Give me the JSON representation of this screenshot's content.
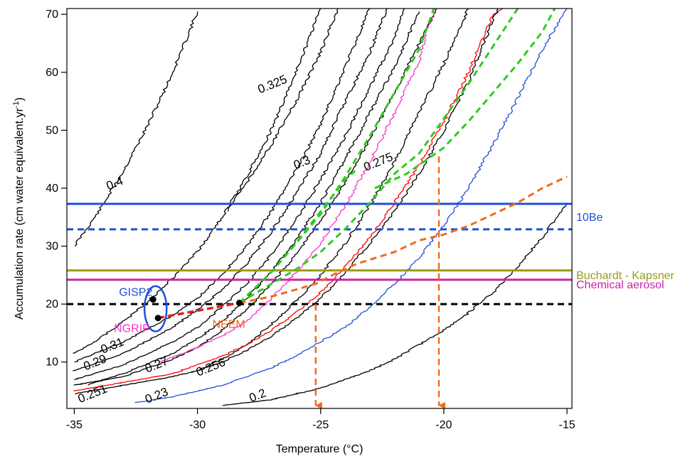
{
  "chart_data": {
    "type": "line",
    "title": "",
    "xlabel": "Temperature (°C)",
    "ylabel": "Accumulation rate (cm water equivalent.yr",
    "ylabel_superscript": "-1",
    "ylabel_close": ")",
    "xlim": [
      -35.3,
      -14.8
    ],
    "ylim": [
      2,
      71
    ],
    "x_ticks": [
      -35,
      -30,
      -25,
      -20,
      -15
    ],
    "x_tick_labels": [
      "-35",
      "-30",
      "-25",
      "-20",
      "-15"
    ],
    "y_ticks": [
      10,
      20,
      30,
      40,
      50,
      60,
      70
    ],
    "y_tick_labels": [
      "10",
      "20",
      "30",
      "40",
      "50",
      "60",
      "70"
    ],
    "grid": false,
    "contours": [
      {
        "label": "0.4",
        "color": "#000000",
        "points": [
          [
            -35,
            30
          ],
          [
            -34,
            36
          ],
          [
            -33,
            43
          ],
          [
            -32,
            51
          ],
          [
            -31,
            60
          ],
          [
            -30,
            70.5
          ]
        ]
      },
      {
        "label": "",
        "color": "#000000",
        "points": [
          [
            -35,
            11.5
          ],
          [
            -34,
            14
          ],
          [
            -33,
            17
          ],
          [
            -32,
            20.5
          ],
          [
            -31,
            24.5
          ],
          [
            -30,
            29
          ],
          [
            -29,
            35
          ],
          [
            -28,
            42
          ],
          [
            -27,
            50
          ],
          [
            -26,
            60
          ],
          [
            -25,
            71
          ]
        ]
      },
      {
        "label": "",
        "color": "#000000",
        "points": [
          [
            -35,
            10
          ],
          [
            -33,
            13.5
          ],
          [
            -31,
            18
          ],
          [
            -30,
            21
          ],
          [
            -29,
            25
          ],
          [
            -28,
            30
          ],
          [
            -27,
            36
          ],
          [
            -26,
            43
          ],
          [
            -25,
            51
          ],
          [
            -24,
            61
          ],
          [
            -23,
            71
          ]
        ]
      },
      {
        "label": "",
        "color": "#000000",
        "points": [
          [
            -35,
            8.5
          ],
          [
            -33,
            11.5
          ],
          [
            -31,
            16
          ],
          [
            -30,
            19
          ],
          [
            -29,
            22.5
          ],
          [
            -28,
            27
          ],
          [
            -27,
            32.5
          ],
          [
            -26,
            39
          ],
          [
            -25,
            46
          ],
          [
            -24,
            55
          ],
          [
            -23,
            63.5
          ],
          [
            -22.3,
            71
          ]
        ]
      },
      {
        "label": "0.31",
        "color": "#000000",
        "points": [
          [
            -35,
            7
          ],
          [
            -33,
            9.5
          ],
          [
            -31,
            13.5
          ],
          [
            -30,
            16
          ],
          [
            -29,
            19.5
          ],
          [
            -28,
            23.5
          ],
          [
            -27,
            28.5
          ],
          [
            -26,
            34.5
          ],
          [
            -25,
            41.5
          ],
          [
            -24,
            49
          ],
          [
            -23,
            57.5
          ],
          [
            -22,
            66
          ],
          [
            -21.6,
            71
          ]
        ]
      },
      {
        "label": "0.3",
        "color": "#000000",
        "points": [
          [
            -34.5,
            6
          ],
          [
            -33,
            8
          ],
          [
            -31,
            11.5
          ],
          [
            -30,
            14
          ],
          [
            -29,
            17
          ],
          [
            -28,
            21
          ],
          [
            -27,
            25.5
          ],
          [
            -26,
            31
          ],
          [
            -25,
            37.5
          ],
          [
            -24,
            45
          ],
          [
            -23,
            53
          ],
          [
            -22,
            61
          ],
          [
            -21,
            70.5
          ]
        ]
      },
      {
        "label": "0.29",
        "color": "#000000",
        "points": [
          [
            -35,
            6
          ],
          [
            -33,
            7.5
          ],
          [
            -31,
            10.5
          ],
          [
            -30,
            12.5
          ],
          [
            -29,
            15.5
          ],
          [
            -28,
            19
          ],
          [
            -27,
            23.5
          ],
          [
            -26,
            28.5
          ],
          [
            -25,
            34.5
          ],
          [
            -24,
            41
          ],
          [
            -23,
            48.5
          ],
          [
            -22,
            56.5
          ],
          [
            -21,
            65
          ],
          [
            -20.3,
            71
          ]
        ]
      },
      {
        "label": "0.325",
        "color": "#000000",
        "points": [
          [
            -28.8,
            36
          ],
          [
            -28,
            41
          ],
          [
            -27,
            47.5
          ],
          [
            -26,
            55
          ],
          [
            -25,
            63.5
          ],
          [
            -24.3,
            71
          ]
        ]
      },
      {
        "label": "0.27",
        "color": "#ff33cc",
        "points": [
          [
            -31.5,
            10
          ],
          [
            -30,
            12.5
          ],
          [
            -29,
            14.5
          ],
          [
            -28,
            17
          ],
          [
            -27,
            21
          ],
          [
            -26,
            25.5
          ],
          [
            -25,
            30.5
          ],
          [
            -24,
            37
          ],
          [
            -23,
            44.5
          ],
          [
            -22,
            53
          ],
          [
            -21,
            62
          ],
          [
            -20.4,
            71
          ]
        ]
      },
      {
        "label": "0.275",
        "color": "#000000",
        "points": [
          [
            -30,
            8.5
          ],
          [
            -29,
            10.5
          ],
          [
            -28,
            13
          ],
          [
            -27,
            16.5
          ],
          [
            -26,
            20.5
          ],
          [
            -25,
            25
          ],
          [
            -24,
            30.5
          ],
          [
            -23,
            37
          ],
          [
            -22,
            44.5
          ],
          [
            -21,
            53
          ],
          [
            -20,
            61.5
          ],
          [
            -19,
            71
          ]
        ]
      },
      {
        "label": "0.251",
        "color": "#ff0000",
        "points": [
          [
            -35,
            5
          ],
          [
            -33,
            6.5
          ],
          [
            -31,
            8
          ],
          [
            -30,
            9.5
          ],
          [
            -29,
            11
          ],
          [
            -28,
            13
          ],
          [
            -27,
            15.5
          ],
          [
            -26,
            18.5
          ],
          [
            -25,
            22
          ],
          [
            -24,
            26.5
          ],
          [
            -23,
            31.5
          ],
          [
            -22,
            37.5
          ],
          [
            -21,
            44
          ],
          [
            -20,
            51.5
          ],
          [
            -19,
            60
          ],
          [
            -18,
            70
          ],
          [
            -17.6,
            71
          ]
        ]
      },
      {
        "label": "0.256",
        "color": "#000000",
        "points": [
          [
            -35,
            4.5
          ],
          [
            -33,
            6
          ],
          [
            -31,
            7.5
          ],
          [
            -30,
            8.5
          ],
          [
            -29,
            10
          ],
          [
            -28,
            12
          ],
          [
            -27,
            14.5
          ],
          [
            -26,
            17.5
          ],
          [
            -25,
            21
          ],
          [
            -24,
            25.5
          ],
          [
            -23,
            30.5
          ],
          [
            -22,
            36
          ],
          [
            -21,
            42.5
          ],
          [
            -20,
            50
          ],
          [
            -19,
            58.5
          ],
          [
            -18.2,
            67
          ],
          [
            -17.8,
            71
          ]
        ]
      },
      {
        "label": "0.23",
        "color": "#1f4fd8",
        "points": [
          [
            -32.5,
            3
          ],
          [
            -31,
            4
          ],
          [
            -30,
            5
          ],
          [
            -29,
            6
          ],
          [
            -28,
            7.5
          ],
          [
            -27,
            9
          ],
          [
            -26,
            11
          ],
          [
            -25,
            13.5
          ],
          [
            -24,
            16
          ],
          [
            -23,
            19.5
          ],
          [
            -22,
            23.5
          ],
          [
            -21,
            28
          ],
          [
            -20,
            33.5
          ],
          [
            -19,
            40
          ],
          [
            -18,
            47.5
          ],
          [
            -17,
            55.5
          ],
          [
            -16,
            64
          ],
          [
            -15,
            71
          ]
        ]
      },
      {
        "label": "0.2",
        "color": "#000000",
        "points": [
          [
            -29,
            2.5
          ],
          [
            -27,
            3.5
          ],
          [
            -26,
            4.5
          ],
          [
            -25,
            5.5
          ],
          [
            -24,
            7
          ],
          [
            -23,
            8.5
          ],
          [
            -22,
            10.5
          ],
          [
            -21,
            13
          ],
          [
            -20,
            15.5
          ],
          [
            -19,
            18.5
          ],
          [
            -18,
            22
          ],
          [
            -17,
            26.5
          ],
          [
            -16,
            31.5
          ],
          [
            -15,
            37.5
          ]
        ]
      }
    ],
    "horizontal_lines": [
      {
        "name": "10Be",
        "y": 37.3,
        "color": "#1f4fd8",
        "style": "solid",
        "label": "10Be"
      },
      {
        "name": "10Be-dashed",
        "y": 32.9,
        "color": "#1f4fd8",
        "style": "dashed",
        "label": ""
      },
      {
        "name": "Buchardt - Kapsner",
        "y": 25.8,
        "color": "#9a9a1a",
        "style": "solid",
        "label": "Buchardt - Kapsner"
      },
      {
        "name": "Chemical aerosol",
        "y": 24.2,
        "color": "#cc22aa",
        "style": "solid",
        "label": "Chemical aerosol"
      },
      {
        "name": "black-dashed",
        "y": 20,
        "color": "#000000",
        "style": "dashed",
        "label": ""
      }
    ],
    "green_dashed": [
      {
        "color": "#2ecc1f",
        "points": [
          [
            -28.3,
            20.2
          ],
          [
            -27,
            25.5
          ],
          [
            -26,
            30.5
          ],
          [
            -25,
            36
          ],
          [
            -24,
            41.5
          ],
          [
            -23.6,
            43
          ]
        ]
      },
      {
        "color": "#2ecc1f",
        "points": [
          [
            -28.3,
            20.2
          ],
          [
            -26,
            26
          ],
          [
            -25,
            29
          ],
          [
            -24,
            33
          ],
          [
            -23,
            37.5
          ],
          [
            -22,
            42.5
          ],
          [
            -21,
            46
          ],
          [
            -20,
            52
          ],
          [
            -19,
            58
          ],
          [
            -17,
            71
          ]
        ]
      },
      {
        "color": "#2ecc1f",
        "points": [
          [
            -26.5,
            28
          ],
          [
            -25,
            35.5
          ],
          [
            -24,
            42
          ],
          [
            -23,
            49
          ],
          [
            -22,
            56.5
          ],
          [
            -21,
            64
          ],
          [
            -20.4,
            71
          ]
        ]
      },
      {
        "color": "#2ecc1f",
        "points": [
          [
            -22.8,
            40
          ],
          [
            -21.5,
            42.5
          ],
          [
            -20,
            47
          ],
          [
            -19,
            51.5
          ],
          [
            -18,
            56.5
          ],
          [
            -17,
            61.5
          ],
          [
            -16,
            67
          ],
          [
            -15.5,
            71
          ]
        ]
      }
    ],
    "orange_dashed": {
      "color": "#f26a1b",
      "points": [
        [
          -28.3,
          20.2
        ],
        [
          -27,
          21.3
        ],
        [
          -26,
          22.5
        ],
        [
          -25.2,
          23.5
        ],
        [
          -24.3,
          25.5
        ],
        [
          -23.5,
          27
        ],
        [
          -22,
          29
        ],
        [
          -21,
          31
        ],
        [
          -20,
          32
        ],
        [
          -19,
          33.5
        ],
        [
          -18,
          35.5
        ],
        [
          -17,
          37.5
        ],
        [
          -16,
          40
        ],
        [
          -15,
          42
        ]
      ]
    },
    "red_dashed": {
      "color": "#e02020",
      "points": [
        [
          -31.6,
          17.6
        ],
        [
          -28.3,
          20.2
        ]
      ]
    },
    "sites": [
      {
        "name": "GISP2",
        "x": -31.8,
        "y": 20.8,
        "color": "#1f4fd8",
        "marker": true
      },
      {
        "name": "NGRIP",
        "x": -31.6,
        "y": 17.6,
        "color": "#ff33cc",
        "marker": true
      },
      {
        "name": "NEEM",
        "x": -28.3,
        "y": 20.2,
        "color": "#f26a1b",
        "marker": true
      }
    ],
    "ellipse": {
      "cx": -31.7,
      "cy": 19.2,
      "rx": 0.45,
      "ry": 3.9,
      "color": "#1f4fd8"
    },
    "vertical_arrows": [
      {
        "x": -25.2,
        "y_from": 20,
        "y_to": 2.5,
        "color": "#f26a1b"
      },
      {
        "x": -20.2,
        "y_from": 45.5,
        "y_to": 2.5,
        "color": "#f26a1b"
      }
    ],
    "contour_labels": [
      {
        "text": "0.4",
        "x": -33.3,
        "y": 40.2
      },
      {
        "text": "0.325",
        "x": -26.9,
        "y": 57.3
      },
      {
        "text": "0.3",
        "x": -25.7,
        "y": 43.8
      },
      {
        "text": "0.275",
        "x": -22.6,
        "y": 43.9
      },
      {
        "text": "0.31",
        "x": -33.4,
        "y": 12.2
      },
      {
        "text": "0.29",
        "x": -34.1,
        "y": 9.3
      },
      {
        "text": "0.27",
        "x": -31.6,
        "y": 8.9
      },
      {
        "text": "0.256",
        "x": -29.4,
        "y": 8.5
      },
      {
        "text": "0.251",
        "x": -34.2,
        "y": 3.9
      },
      {
        "text": "0.23",
        "x": -31.6,
        "y": 3.6
      },
      {
        "text": "0.2",
        "x": -27.5,
        "y": 3.6
      }
    ]
  }
}
